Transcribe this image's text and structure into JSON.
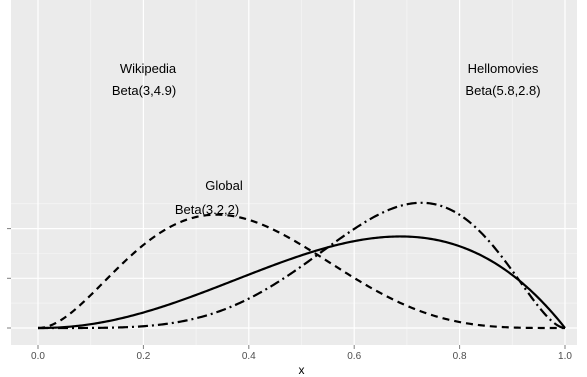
{
  "chart_data": {
    "type": "line",
    "title": "",
    "xlabel": "x",
    "ylabel": "",
    "xlim": [
      -0.05,
      1.05
    ],
    "ylim": [
      -0.1,
      2.7
    ],
    "x_ticks": [
      "0.0",
      "0.2",
      "0.4",
      "0.6",
      "0.8",
      "1.0"
    ],
    "y_ticks_count": 3,
    "grid": true,
    "background": "#ebebeb",
    "gridline_color": "#ffffff",
    "line_color": "#000000",
    "series": [
      {
        "name": "Wikipedia",
        "annotation": [
          "Wikipedia",
          "Beta(3,4.9)"
        ],
        "distribution": {
          "alpha": 3,
          "beta": 4.9
        },
        "linestyle": "dashed",
        "x": [
          0.0,
          0.1,
          0.2,
          0.3,
          0.35,
          0.4,
          0.5,
          0.6,
          0.7,
          0.8,
          0.9,
          1.0
        ],
        "values": [
          0.0,
          0.6,
          1.62,
          2.17,
          2.22,
          2.12,
          1.55,
          0.89,
          0.38,
          0.1,
          0.01,
          0.0
        ]
      },
      {
        "name": "Hellomovies",
        "annotation": [
          "Hellomovies",
          "Beta(5.8,2.8)"
        ],
        "distribution": {
          "alpha": 5.8,
          "beta": 2.8
        },
        "linestyle": "dashdot",
        "x": [
          0.0,
          0.1,
          0.2,
          0.3,
          0.4,
          0.5,
          0.6,
          0.7,
          0.72,
          0.8,
          0.9,
          1.0
        ],
        "values": [
          0.0,
          0.003,
          0.04,
          0.19,
          0.55,
          1.14,
          1.83,
          2.26,
          2.27,
          2.05,
          1.03,
          0.0
        ]
      },
      {
        "name": "Global",
        "annotation": [
          "Global",
          "Beta(3.2,2)"
        ],
        "distribution": {
          "alpha": 3.2,
          "beta": 2
        },
        "linestyle": "solid",
        "x": [
          0.0,
          0.1,
          0.2,
          0.3,
          0.4,
          0.5,
          0.6,
          0.7,
          0.8,
          0.9,
          1.0
        ],
        "values": [
          0.0,
          0.11,
          0.42,
          0.85,
          1.32,
          1.72,
          1.99,
          2.04,
          1.79,
          1.1,
          0.0
        ]
      }
    ]
  }
}
